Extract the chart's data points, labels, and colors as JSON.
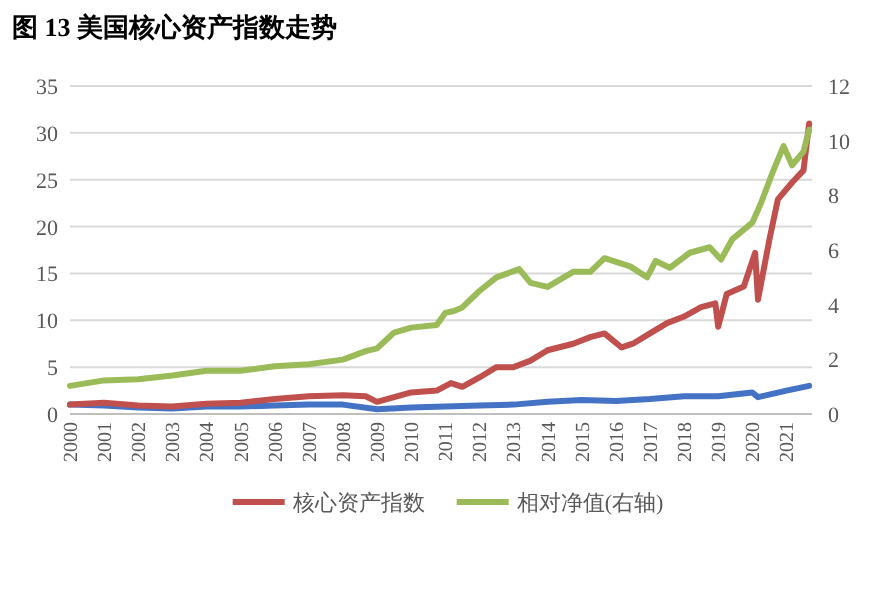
{
  "chart_data": {
    "type": "line",
    "title": "图 13 美国核心资产指数走势",
    "xlim": [
      "2000-01",
      "2021-10"
    ],
    "xticks": [
      "2000",
      "2001",
      "2002",
      "2003",
      "2004",
      "2005",
      "2006",
      "2007",
      "2008",
      "2009",
      "2010",
      "2011",
      "2012",
      "2013",
      "2014",
      "2015",
      "2016",
      "2017",
      "2018",
      "2019",
      "2020",
      "2021"
    ],
    "ylim": [
      0,
      35
    ],
    "yticks": [
      0,
      5,
      10,
      15,
      20,
      25,
      30,
      35
    ],
    "y2lim": [
      0,
      12
    ],
    "y2ticks": [
      0,
      2,
      4,
      6,
      8,
      10,
      12
    ],
    "grid": "y",
    "legend": "bottom",
    "marker": "none",
    "line_style": "solid",
    "series": [
      {
        "color": "#4472c4",
        "x": [
          "2000-01",
          "2001-01",
          "2002-01",
          "2003-01",
          "2004-01",
          "2005-01",
          "2006-01",
          "2007-01",
          "2008-01",
          "2009-01",
          "2010-01",
          "2011-01",
          "2012-01",
          "2013-01",
          "2014-01",
          "2015-01",
          "2016-01",
          "2017-01",
          "2018-01",
          "2019-01",
          "2020-01",
          "2020-03",
          "2021-01",
          "2021-09"
        ],
        "values": [
          1.0,
          0.9,
          0.7,
          0.6,
          0.8,
          0.8,
          0.9,
          1.0,
          1.0,
          0.5,
          0.7,
          0.8,
          0.9,
          1.0,
          1.3,
          1.5,
          1.4,
          1.6,
          1.9,
          1.9,
          2.3,
          1.8,
          2.5,
          3.0
        ]
      },
      {
        "name": "核心资产指数",
        "color": "#c0504d",
        "x": [
          "2000-01",
          "2001-01",
          "2002-01",
          "2003-01",
          "2004-01",
          "2005-01",
          "2006-01",
          "2007-01",
          "2008-01",
          "2008-09",
          "2009-01",
          "2009-07",
          "2010-01",
          "2010-10",
          "2011-03",
          "2011-07",
          "2012-01",
          "2012-07",
          "2013-01",
          "2013-07",
          "2014-01",
          "2014-10",
          "2015-04",
          "2015-09",
          "2016-03",
          "2016-07",
          "2017-01",
          "2017-07",
          "2018-01",
          "2018-07",
          "2018-12",
          "2019-01",
          "2019-04",
          "2019-10",
          "2020-02",
          "2020-03",
          "2020-07",
          "2020-10",
          "2021-03",
          "2021-07",
          "2021-09"
        ],
        "values": [
          1.0,
          1.2,
          0.9,
          0.8,
          1.1,
          1.2,
          1.6,
          1.9,
          2.0,
          1.9,
          1.3,
          1.8,
          2.3,
          2.5,
          3.3,
          2.9,
          3.9,
          5.0,
          5.0,
          5.7,
          6.8,
          7.5,
          8.2,
          8.6,
          7.1,
          7.5,
          8.6,
          9.7,
          10.4,
          11.4,
          11.8,
          9.3,
          12.8,
          13.6,
          17.2,
          12.2,
          18.6,
          22.9,
          24.7,
          26,
          31
        ]
      },
      {
        "name": "相对净值(右轴)",
        "color": "#9bbb59",
        "axis": "y2",
        "x": [
          "2000-01",
          "2001-01",
          "2002-01",
          "2003-01",
          "2004-01",
          "2005-01",
          "2006-01",
          "2007-01",
          "2008-01",
          "2008-09",
          "2009-01",
          "2009-07",
          "2010-01",
          "2010-10",
          "2011-01",
          "2011-04",
          "2011-07",
          "2012-01",
          "2012-07",
          "2013-03",
          "2013-07",
          "2014-01",
          "2014-10",
          "2015-04",
          "2015-09",
          "2016-06",
          "2016-12",
          "2017-03",
          "2017-08",
          "2018-03",
          "2018-10",
          "2019-02",
          "2019-06",
          "2020-01",
          "2020-04",
          "2020-08",
          "2020-12",
          "2021-03",
          "2021-07",
          "2021-09"
        ],
        "values": [
          1.03,
          1.23,
          1.27,
          1.41,
          1.58,
          1.58,
          1.75,
          1.82,
          1.99,
          2.3,
          2.4,
          2.98,
          3.16,
          3.26,
          3.7,
          3.77,
          3.9,
          4.5,
          5.0,
          5.3,
          4.8,
          4.65,
          5.2,
          5.2,
          5.7,
          5.4,
          5.0,
          5.6,
          5.35,
          5.9,
          6.1,
          5.65,
          6.4,
          7.0,
          7.7,
          8.8,
          9.8,
          9.1,
          9.6,
          10.4
        ]
      }
    ]
  }
}
